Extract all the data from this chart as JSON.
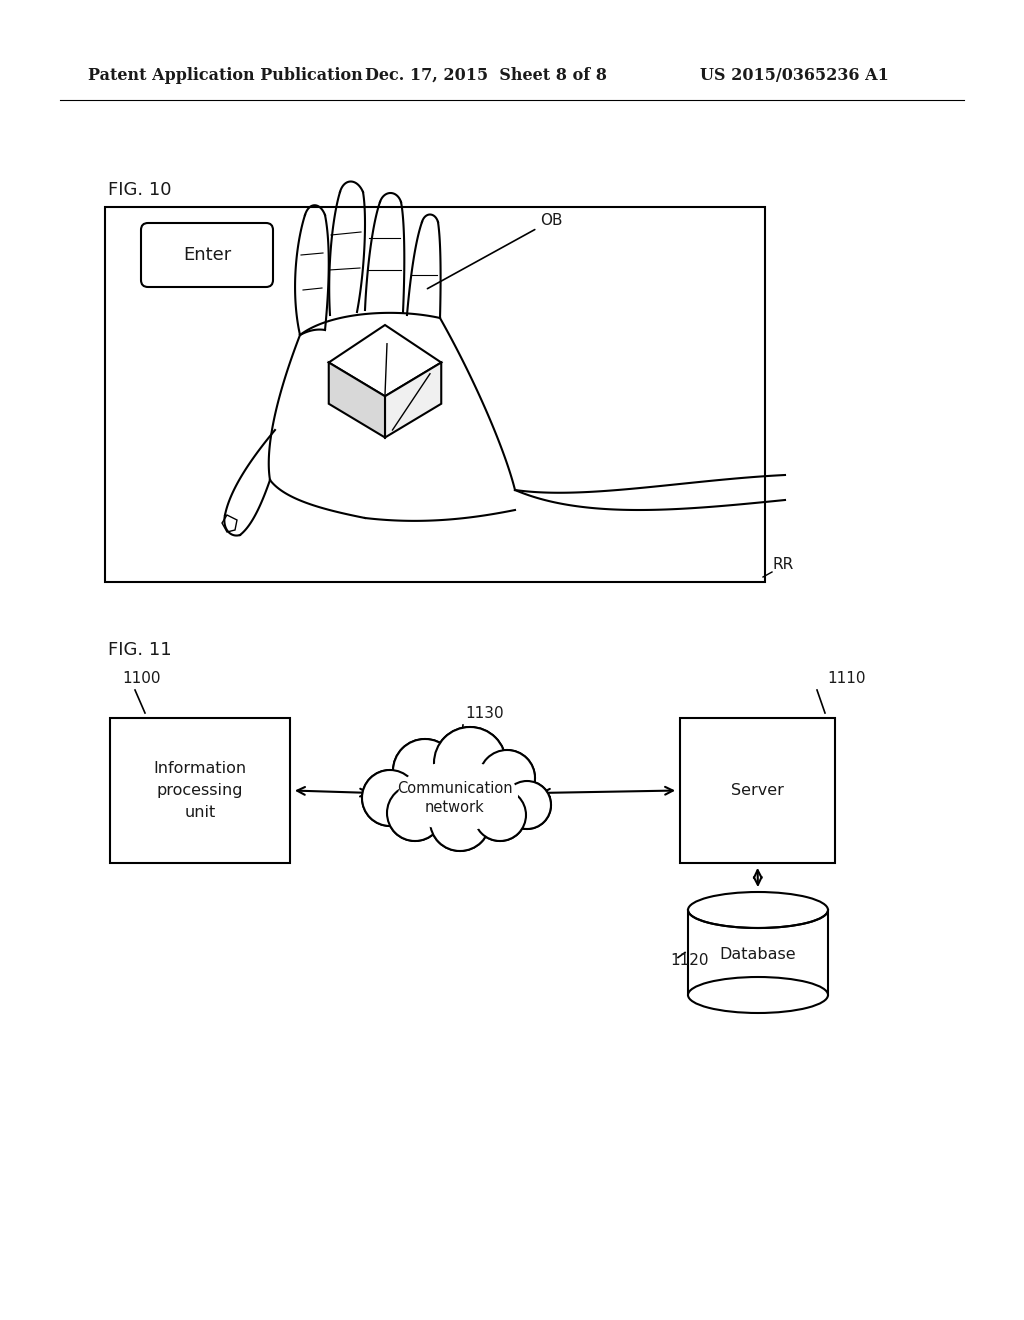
{
  "bg_color": "#ffffff",
  "header_left": "Patent Application Publication",
  "header_mid": "Dec. 17, 2015  Sheet 8 of 8",
  "header_right": "US 2015/0365236 A1",
  "fig10_label": "FIG. 10",
  "fig11_label": "FIG. 11",
  "enter_btn_text": "Enter",
  "ob_label": "OB",
  "rr_label": "RR",
  "node_1100_label": "1100",
  "node_1110_label": "1110",
  "node_1120_label": "1120",
  "node_1130_label": "1130",
  "ipu_text": "Information\nprocessing\nunit",
  "server_text": "Server",
  "database_text": "Database",
  "comm_network_text": "Communication\nnetwork",
  "line_color": "#000000",
  "text_color": "#1a1a1a"
}
